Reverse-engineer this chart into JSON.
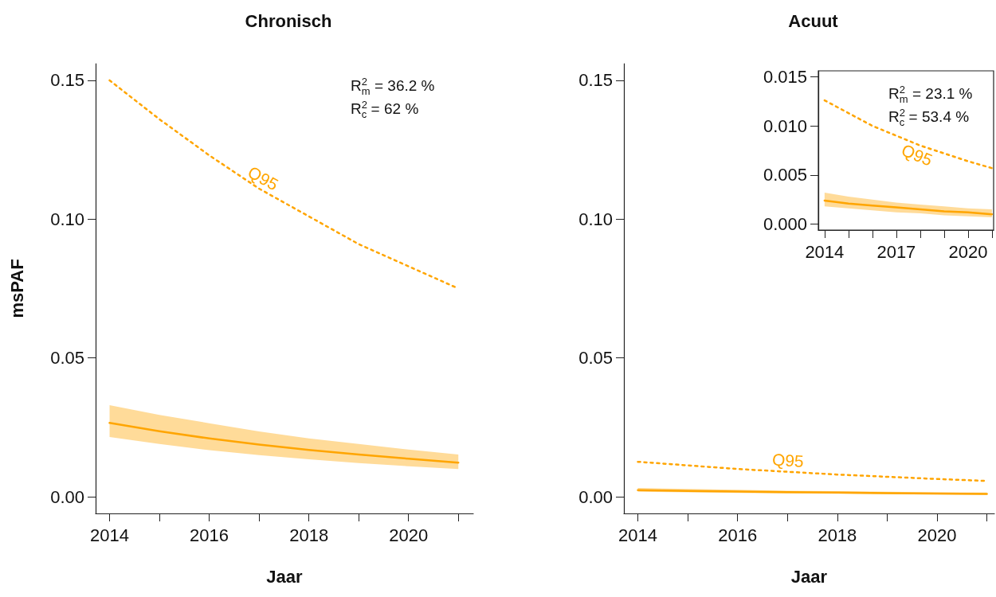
{
  "chart_data": [
    {
      "type": "line",
      "title": "Chronisch",
      "xlabel": "Jaar",
      "ylabel": "msPAF",
      "x": [
        2014,
        2015,
        2016,
        2017,
        2018,
        2019,
        2020,
        2021
      ],
      "series": [
        {
          "color": "#ffa500",
          "line_style": "solid",
          "values": [
            0.0266,
            0.0236,
            0.021,
            0.0188,
            0.0169,
            0.0152,
            0.0137,
            0.0123
          ],
          "lower": [
            0.0215,
            0.019,
            0.0168,
            0.015,
            0.0135,
            0.0121,
            0.011,
            0.01
          ],
          "upper": [
            0.033,
            0.0295,
            0.0265,
            0.0235,
            0.021,
            0.019,
            0.017,
            0.0152
          ]
        },
        {
          "name": "Q95",
          "color": "#ffa500",
          "line_style": "dotted",
          "values": [
            0.15,
            0.136,
            0.123,
            0.111,
            0.101,
            0.091,
            0.083,
            0.075
          ]
        }
      ],
      "xlim": [
        2013.72,
        2021.3
      ],
      "ylim": [
        -0.006,
        0.156
      ],
      "xticks": [
        2014,
        {
          "value": 2015,
          "label": null
        },
        2016,
        {
          "value": 2017,
          "label": null
        },
        2018,
        {
          "value": 2019,
          "label": null
        },
        2020,
        {
          "value": 2021,
          "label": null
        }
      ],
      "yticks": [
        {
          "value": 0,
          "label": "0.00"
        },
        {
          "value": 0.05,
          "label": "0.05"
        },
        {
          "value": 0.1,
          "label": "0.10"
        },
        {
          "value": 0.15,
          "label": "0.15"
        }
      ],
      "annotations": [
        "R$^{2}$$_{m}$ = 36.2 %",
        "R$^{2}$$_{c}$ = 62 %"
      ]
    },
    {
      "type": "line",
      "title": "Acuut",
      "xlabel": "Jaar",
      "x": [
        2014,
        2015,
        2016,
        2017,
        2018,
        2019,
        2020,
        2021
      ],
      "series": [
        {
          "color": "#ffa500",
          "line_style": "solid",
          "values": [
            0.0024,
            0.0021,
            0.0019,
            0.0017,
            0.0015,
            0.0013,
            0.0012,
            0.001
          ],
          "lower": [
            0.0018,
            0.0016,
            0.0014,
            0.0012,
            0.0011,
            0.0009,
            0.0008,
            0.0007
          ],
          "upper": [
            0.0032,
            0.0028,
            0.0025,
            0.0022,
            0.002,
            0.0018,
            0.0016,
            0.0015
          ]
        },
        {
          "name": "Q95",
          "color": "#ffa500",
          "line_style": "dotted",
          "values": [
            0.0126,
            0.0113,
            0.01,
            0.009,
            0.008,
            0.0072,
            0.0064,
            0.0057
          ]
        }
      ],
      "xlim": [
        2013.72,
        2021.15
      ],
      "ylim": [
        -0.006,
        0.156
      ],
      "xticks": [
        2014,
        {
          "value": 2015,
          "label": null
        },
        2016,
        {
          "value": 2017,
          "label": null
        },
        2018,
        {
          "value": 2019,
          "label": null
        },
        2020,
        {
          "value": 2021,
          "label": null
        }
      ],
      "yticks": [
        {
          "value": 0,
          "label": "0.00"
        },
        {
          "value": 0.05,
          "label": "0.05"
        },
        {
          "value": 0.1,
          "label": "0.10"
        },
        {
          "value": 0.15,
          "label": "0.15"
        }
      ]
    },
    {
      "type": "line",
      "x": [
        2014,
        2015,
        2016,
        2017,
        2018,
        2019,
        2020,
        2021
      ],
      "series": [
        {
          "color": "#ffa500",
          "line_style": "solid",
          "values": [
            0.0024,
            0.0021,
            0.0019,
            0.0017,
            0.0015,
            0.0013,
            0.0012,
            0.001
          ],
          "lower": [
            0.0018,
            0.0016,
            0.0014,
            0.0012,
            0.0011,
            0.0009,
            0.0008,
            0.0007
          ],
          "upper": [
            0.0032,
            0.0028,
            0.0025,
            0.0022,
            0.002,
            0.0018,
            0.0016,
            0.0015
          ]
        },
        {
          "name": "Q95",
          "color": "#ffa500",
          "line_style": "dotted",
          "values": [
            0.0126,
            0.0113,
            0.01,
            0.009,
            0.008,
            0.0072,
            0.0064,
            0.0057
          ]
        }
      ],
      "xlim": [
        2013.74,
        2021.07
      ],
      "ylim": [
        -0.0006,
        0.0156
      ],
      "xticks": [
        2014,
        {
          "value": 2015,
          "label": null
        },
        {
          "value": 2016,
          "label": null
        },
        2017,
        {
          "value": 2018,
          "label": null
        },
        {
          "value": 2019,
          "label": null
        },
        2020,
        {
          "value": 2021,
          "label": null
        }
      ],
      "yticks": [
        {
          "value": 0,
          "label": "0.000"
        },
        {
          "value": 0.005,
          "label": "0.005"
        },
        {
          "value": 0.01,
          "label": "0.010"
        },
        {
          "value": 0.015,
          "label": "0.015"
        }
      ],
      "annotations": [
        "R$^{2}$$_{m}$ = 23.1 %",
        "R$^{2}$$_{c}$ = 53.4 %"
      ]
    }
  ]
}
